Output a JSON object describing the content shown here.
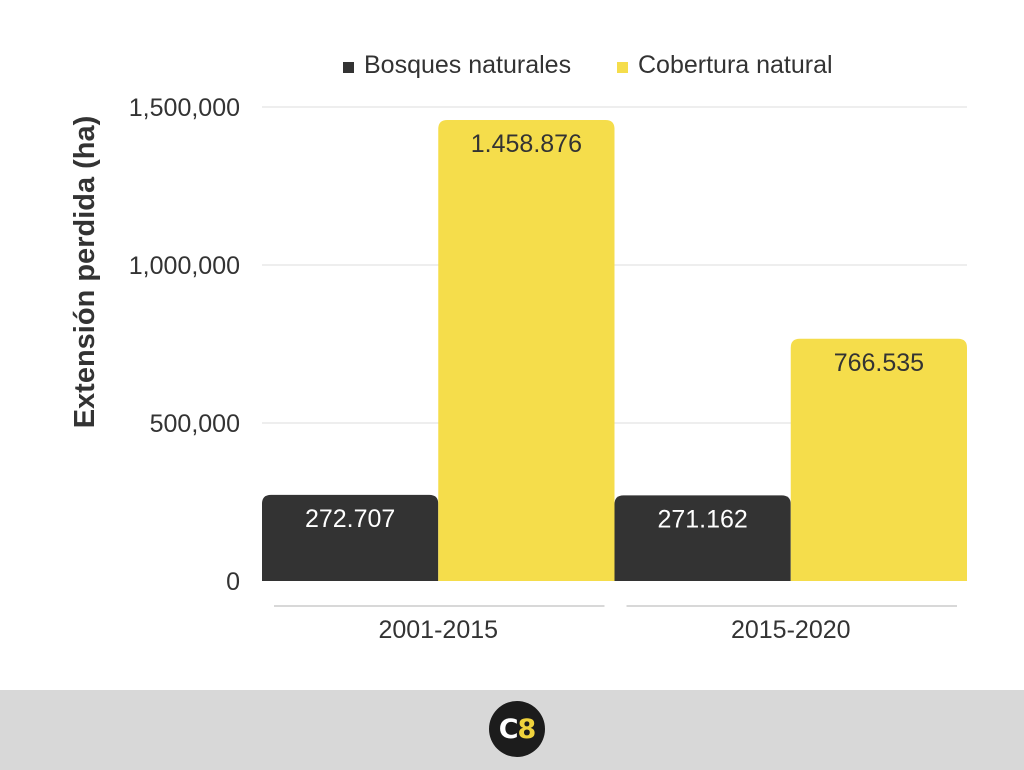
{
  "chart_data": {
    "type": "bar",
    "categories": [
      "2001-2015",
      "2015-2020"
    ],
    "series": [
      {
        "name": "Bosques naturales",
        "color": "#333333",
        "values": [
          272707,
          271162
        ],
        "value_labels": [
          "272.707",
          "271.162"
        ],
        "label_color": "#ffffff"
      },
      {
        "name": "Cobertura natural",
        "color": "#f5dd4b",
        "values": [
          1458876,
          766535
        ],
        "value_labels": [
          "1.458.876",
          "766.535"
        ],
        "label_color": "#333333"
      }
    ],
    "ylabel": "Extensión perdida (ha)",
    "xlabel": "",
    "ylim": [
      0,
      1500000
    ],
    "yticks": [
      0,
      500000,
      1000000,
      1500000
    ],
    "ytick_labels": [
      "0",
      "500,000",
      "1,000,000",
      "1,500,000"
    ],
    "grid": true,
    "legend_position": "top"
  },
  "footer": {
    "logo_c": "C",
    "logo_8": "8"
  }
}
